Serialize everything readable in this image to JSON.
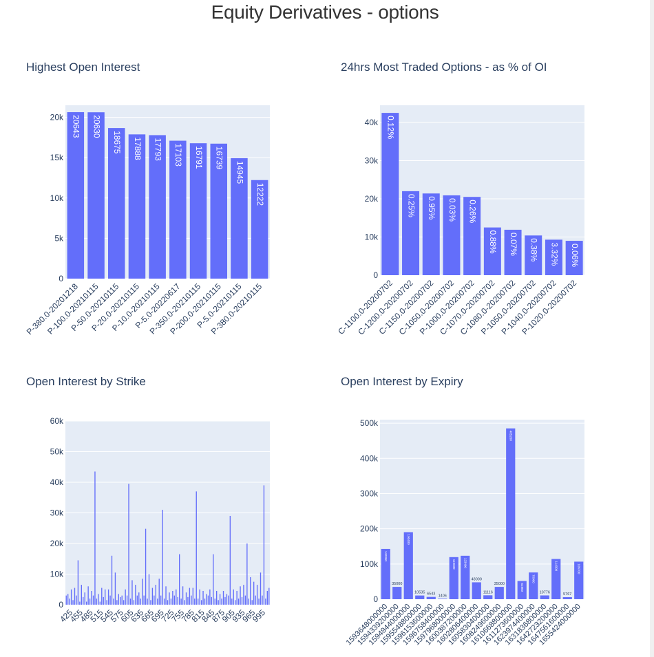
{
  "page": {
    "title": "Equity Derivatives - options"
  },
  "colors": {
    "bar": "#636efa",
    "plot_bg": "#e5ecf6",
    "grid": "#ffffff",
    "text": "#2a3f5f"
  },
  "chart_data": [
    {
      "id": "oi",
      "type": "bar",
      "title": "Highest Open Interest",
      "categories": [
        "P-380.0-20201218",
        "P-100.0-20210115",
        "P-50.0-20210115",
        "P-20.0-20210115",
        "P-10.0-20210115",
        "P-5.0-20220617",
        "P-350.0-20210115",
        "P-200.0-20210115",
        "P-5.0-20210115",
        "P-380.0-20210115"
      ],
      "values": [
        20643,
        20630,
        18675,
        17888,
        17793,
        17103,
        16791,
        16739,
        14945,
        12222
      ],
      "labels": [
        "20643",
        "20630",
        "18675",
        "17888",
        "17793",
        "17103",
        "16791",
        "16739",
        "14945",
        "12222"
      ],
      "ylim": [
        0,
        21500
      ],
      "yticks": [
        0,
        5000,
        10000,
        15000,
        20000
      ],
      "ytick_labels": [
        "0",
        "5k",
        "10k",
        "15k",
        "20k"
      ],
      "xlabel": "",
      "ylabel": ""
    },
    {
      "id": "traded",
      "type": "bar",
      "title": "24hrs Most Traded Options - as % of OI",
      "categories": [
        "C-1100.0-20200702",
        "C-1200.0-20200702",
        "C-1150.0-20200702",
        "C-1050.0-20200702",
        "P-1000.0-20200702",
        "C-1070.0-20200702",
        "C-1080.0-20200702",
        "P-1050.0-20200702",
        "P-1040.0-20200702",
        "P-1020.0-20200702"
      ],
      "values": [
        42500,
        22000,
        21400,
        20900,
        20500,
        12500,
        11900,
        10400,
        9300,
        9000
      ],
      "labels": [
        "0.12%",
        "0.25%",
        "0.95%",
        "0.03%",
        "0.26%",
        "0.88%",
        "0.07%",
        "0.38%",
        "3.32%",
        "0.06%"
      ],
      "ylim": [
        0,
        44500
      ],
      "yticks": [
        0,
        10000,
        20000,
        30000,
        40000
      ],
      "ytick_labels": [
        "0",
        "10k",
        "20k",
        "30k",
        "40k"
      ],
      "xlabel": "",
      "ylabel": ""
    },
    {
      "id": "strike",
      "type": "bar",
      "title": "Open Interest by Strike",
      "x_start": 415,
      "x_step": 5,
      "values": [
        3000,
        3500,
        2000,
        5000,
        1500,
        5500,
        3000,
        14500,
        1000,
        6500,
        2500,
        4000,
        1000,
        6000,
        2000,
        4500,
        3000,
        43500,
        2000,
        3500,
        1000,
        5500,
        2500,
        5000,
        1500,
        5000,
        3000,
        16000,
        2000,
        10500,
        1500,
        3500,
        2500,
        3000,
        1500,
        5000,
        3000,
        39500,
        2000,
        8000,
        1500,
        6500,
        3000,
        4000,
        2000,
        8500,
        3000,
        24800,
        2000,
        10000,
        1500,
        5500,
        3000,
        6500,
        2000,
        8500,
        3000,
        31000,
        2000,
        6000,
        1500,
        4000,
        2000,
        4500,
        3000,
        5000,
        2500,
        16500,
        2000,
        6000,
        1500,
        4000,
        2500,
        5500,
        3000,
        5500,
        2000,
        37000,
        2000,
        5000,
        1500,
        4500,
        2000,
        3500,
        3000,
        5000,
        2500,
        16500,
        2000,
        4500,
        1500,
        3500,
        2000,
        4500,
        2500,
        3500,
        3000,
        29000,
        2000,
        5000,
        1500,
        4500,
        2000,
        6000,
        2500,
        6500,
        3000,
        20000,
        2000,
        9000,
        1500,
        7500,
        3000,
        6500,
        2000,
        10500,
        3000,
        39000,
        2000,
        4500,
        5500
      ],
      "xticks": [
        425,
        455,
        485,
        515,
        545,
        575,
        605,
        635,
        665,
        695,
        725,
        755,
        785,
        815,
        845,
        875,
        905,
        935,
        965,
        995
      ],
      "ylim": [
        0,
        60000
      ],
      "yticks": [
        0,
        10000,
        20000,
        30000,
        40000,
        50000,
        60000
      ],
      "ytick_labels": [
        "0",
        "10k",
        "20k",
        "30k",
        "40k",
        "50k",
        "60k"
      ],
      "xlabel": "",
      "ylabel": ""
    },
    {
      "id": "expiry",
      "type": "bar",
      "title": "Open Interest by Expiry",
      "categories": [
        "1593648000000",
        "1594339200000",
        "1594944000000",
        "1595548800000",
        "1596153600000",
        "1596758400000",
        "1597968000000",
        "1600387200000",
        "1602806400000",
        "1605830400000",
        "1608249600000",
        "1610668800000",
        "1611273600000",
        "1623974400000",
        "1631836800000",
        "1642723200000",
        "1647561600000",
        "1655424000000"
      ],
      "values": [
        142800,
        35000,
        190400,
        10535,
        6543,
        1406,
        119600,
        123400,
        48000,
        11116,
        35000,
        485200,
        51800,
        76000,
        10776,
        114300,
        5767,
        106700
      ],
      "labels": [
        "142800",
        "35000",
        "190400",
        "10535",
        "6543",
        "1406",
        "119600",
        "123400",
        "48000",
        "11116",
        "35000",
        "485200",
        "51800",
        "76000",
        "10776",
        "114300",
        "5767",
        "106700"
      ],
      "ylim": [
        0,
        510000
      ],
      "yticks": [
        0,
        100000,
        200000,
        300000,
        400000,
        500000
      ],
      "ytick_labels": [
        "0",
        "100k",
        "200k",
        "300k",
        "400k",
        "500k"
      ],
      "xlabel": "",
      "ylabel": ""
    }
  ]
}
